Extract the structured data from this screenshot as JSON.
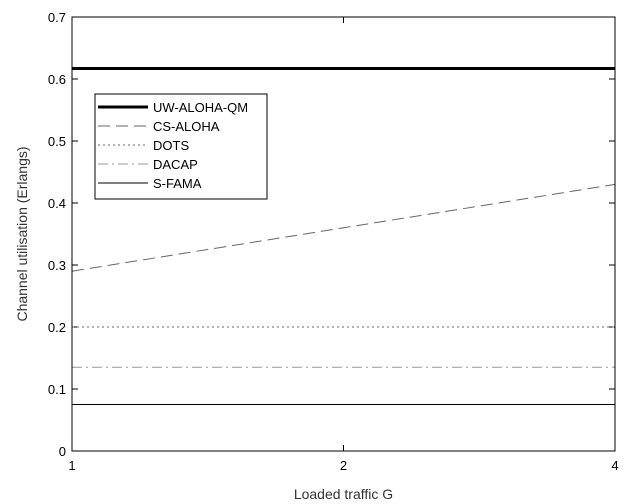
{
  "chart_data": {
    "type": "line",
    "xlabel": "Loaded traffic G",
    "ylabel": "Channel utilisation (Erlangs)",
    "x_ticks": [
      "1",
      "2",
      "4"
    ],
    "y_ticks": [
      "0",
      "0.1",
      "0.2",
      "0.3",
      "0.4",
      "0.5",
      "0.6",
      "0.7"
    ],
    "xlim": [
      1,
      4
    ],
    "ylim": [
      0,
      0.7
    ],
    "grid": false,
    "legend_position": "upper-left",
    "series": [
      {
        "name": "UW-ALOHA-QM",
        "x": [
          1,
          2,
          4
        ],
        "y": [
          0.617,
          0.617,
          0.617
        ],
        "style": "solid-thick",
        "color": "#000000"
      },
      {
        "name": "CS-ALOHA",
        "x": [
          1,
          2,
          4
        ],
        "y": [
          0.29,
          0.36,
          0.43
        ],
        "style": "dashed",
        "color": "#666666"
      },
      {
        "name": "DOTS",
        "x": [
          1,
          2,
          4
        ],
        "y": [
          0.2,
          0.2,
          0.2
        ],
        "style": "dotted",
        "color": "#888888"
      },
      {
        "name": "DACAP",
        "x": [
          1,
          2,
          4
        ],
        "y": [
          0.135,
          0.135,
          0.135
        ],
        "style": "dashdot",
        "color": "#999999"
      },
      {
        "name": "S-FAMA",
        "x": [
          1,
          2,
          4
        ],
        "y": [
          0.075,
          0.075,
          0.075
        ],
        "style": "solid",
        "color": "#000000"
      }
    ]
  }
}
